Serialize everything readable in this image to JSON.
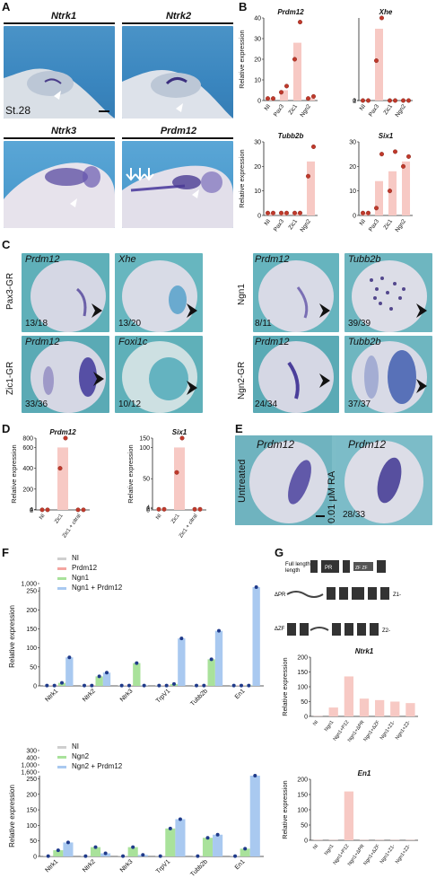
{
  "panels": {
    "A": "A",
    "B": "B",
    "C": "C",
    "D": "D",
    "E": "E",
    "F": "F",
    "G": "G"
  },
  "panelA": {
    "labels": [
      "Ntrk1",
      "Ntrk2",
      "Ntrk3",
      "Prdm12"
    ],
    "stage": "St.28"
  },
  "panelC": {
    "row_labels": [
      "Pax3-GR",
      "Zic1-GR",
      "Ngn1",
      "Ngn2-GR"
    ],
    "images": [
      {
        "gene": "Prdm12",
        "count": "13/18"
      },
      {
        "gene": "Xhe",
        "count": "13/20"
      },
      {
        "gene": "Prdm12",
        "count": "33/36"
      },
      {
        "gene": "Foxi1c",
        "count": "10/12"
      },
      {
        "gene": "Prdm12",
        "count": "8/11"
      },
      {
        "gene": "Tubb2b",
        "count": "39/39"
      },
      {
        "gene": "Prdm12",
        "count": "24/34"
      },
      {
        "gene": "Tubb2b",
        "count": "37/37"
      }
    ]
  },
  "panelE": {
    "left_label": "Untreated",
    "right_label": "0.01 μM RA",
    "gene": "Prdm12",
    "count": "28/33"
  },
  "panelG": {
    "constructs": [
      "Full length",
      "ΔPR",
      "ΔZF"
    ],
    "domains": [
      "PR",
      "ZF",
      "ZF",
      "ZF"
    ]
  },
  "chart_data": [
    {
      "id": "B-prdm12",
      "type": "bar",
      "title": "Prdm12",
      "ylabel": "Relative expression",
      "categories": [
        "NI",
        "Pax3",
        "Zic1",
        "Ngn2"
      ],
      "values": [
        1,
        5,
        28,
        1.5
      ],
      "points": [
        [
          1,
          1
        ],
        [
          4,
          7
        ],
        [
          20,
          38
        ],
        [
          1,
          2
        ]
      ],
      "yticks": [
        0,
        10,
        20,
        30,
        40
      ],
      "ylim": [
        0,
        40
      ],
      "color": "#f7c9c4"
    },
    {
      "id": "B-xhe",
      "type": "bar",
      "title": "Xhe",
      "ylabel": "",
      "categories": [
        "NI",
        "Pax3",
        "Zic1",
        "Ngn2"
      ],
      "values": [
        1,
        2700,
        0.5,
        0.6
      ],
      "points": [
        [
          1,
          1
        ],
        [
          1500,
          3900
        ],
        [
          0.3,
          0.7
        ],
        [
          0.5,
          0.7
        ]
      ],
      "yticks": [
        "0",
        "1",
        "2",
        "1,000",
        "2,000",
        "3,000",
        "4,000",
        "5,000"
      ],
      "color": "#f7c9c4"
    },
    {
      "id": "B-tubb2b",
      "type": "bar",
      "title": "Tubb2b",
      "ylabel": "Relative expression",
      "categories": [
        "NI",
        "Pax3",
        "Zic1",
        "Ngn2"
      ],
      "values": [
        1,
        1,
        1,
        22
      ],
      "points": [
        [
          1,
          1
        ],
        [
          1,
          1
        ],
        [
          1,
          1
        ],
        [
          16,
          28
        ]
      ],
      "yticks": [
        0,
        10,
        20,
        30
      ],
      "ylim": [
        0,
        30
      ],
      "color": "#f7c9c4"
    },
    {
      "id": "B-six1",
      "type": "bar",
      "title": "Six1",
      "ylabel": "",
      "categories": [
        "NI",
        "Pax3",
        "Zic1",
        "Ngn2"
      ],
      "values": [
        1,
        14,
        18,
        22
      ],
      "points": [
        [
          1,
          1
        ],
        [
          3,
          25
        ],
        [
          10,
          26
        ],
        [
          20,
          24
        ]
      ],
      "yticks": [
        0,
        10,
        20,
        30
      ],
      "ylim": [
        0,
        30
      ],
      "color": "#f7c9c4"
    },
    {
      "id": "D-prdm12",
      "type": "bar",
      "title": "Prdm12",
      "ylabel": "Relative expression",
      "categories": [
        "NI",
        "Zic1",
        "Zic1 + citral"
      ],
      "values": [
        1,
        600,
        1
      ],
      "points": [
        [
          1,
          1
        ],
        [
          400,
          900
        ],
        [
          1,
          1
        ]
      ],
      "yticks": [
        "0",
        "2",
        "4",
        "200",
        "400",
        "600",
        "800",
        "1,000"
      ],
      "color": "#f7c9c4"
    },
    {
      "id": "D-six1",
      "type": "bar",
      "title": "Six1",
      "ylabel": "Relative expression",
      "categories": [
        "NI",
        "Zic1",
        "Zic1 + citral"
      ],
      "values": [
        1,
        100,
        1
      ],
      "points": [
        [
          1,
          1
        ],
        [
          60,
          150
        ],
        [
          1,
          1
        ]
      ],
      "yticks": [
        "0",
        "2",
        "4",
        "50",
        "100",
        "150"
      ],
      "color": "#f7c9c4"
    },
    {
      "id": "F-top",
      "type": "bar",
      "ylabel": "Relative expression",
      "categories": [
        "Ntrk1",
        "Ntrk2",
        "Ntrk3",
        "TrpV1",
        "Tubb2b",
        "En1"
      ],
      "series": [
        {
          "name": "NI",
          "color": "#cfcfcf",
          "values": [
            1,
            1,
            1,
            1,
            1,
            1
          ]
        },
        {
          "name": "Prdm12",
          "color": "#f4a5a0",
          "values": [
            1,
            1,
            1,
            1,
            1,
            1
          ]
        },
        {
          "name": "Ngn1",
          "color": "#a9e29b",
          "values": [
            8,
            25,
            60,
            5,
            70,
            1
          ]
        },
        {
          "name": "Ngn1 + Prdm12",
          "color": "#a9c9f0",
          "values": [
            75,
            35,
            1,
            125,
            145,
            600
          ]
        }
      ],
      "yticks": [
        "0",
        "50",
        "100",
        "150",
        "200",
        "250",
        "1,000"
      ]
    },
    {
      "id": "F-bottom",
      "type": "bar",
      "ylabel": "Relative expression",
      "categories": [
        "Ntrk1",
        "Ntrk2",
        "Ntrk3",
        "TrpV1",
        "Tubb2b",
        "En1"
      ],
      "series": [
        {
          "name": "NI",
          "color": "#cfcfcf",
          "values": [
            1,
            1,
            1,
            1,
            1,
            1
          ]
        },
        {
          "name": "Ngn2",
          "color": "#a9e29b",
          "values": [
            20,
            30,
            30,
            90,
            60,
            25
          ]
        },
        {
          "name": "Ngn2 + Prdm12",
          "color": "#a9c9f0",
          "values": [
            45,
            10,
            5,
            120,
            70,
            1200
          ]
        }
      ],
      "yticks": [
        "0",
        "50",
        "100",
        "150",
        "200",
        "250",
        "300",
        "400",
        "1,000",
        "1,600"
      ]
    },
    {
      "id": "G-ntrk1",
      "type": "bar",
      "title": "Ntrk1",
      "ylabel": "Relative expression",
      "categories": [
        "NI",
        "Ngn1",
        "Ngn1+P12",
        "Ngn1+ΔPR",
        "Ngn1+ΔZF",
        "Ngn1+Z1-",
        "Ngn1+Z2-"
      ],
      "values": [
        1,
        30,
        135,
        60,
        55,
        50,
        45
      ],
      "yticks": [
        0,
        50,
        100,
        150,
        200
      ],
      "ylim": [
        0,
        200
      ],
      "color": "#f7c9c4"
    },
    {
      "id": "G-en1",
      "type": "bar",
      "title": "En1",
      "ylabel": "Relative expression",
      "categories": [
        "NI",
        "Ngn1",
        "Ngn1+P12",
        "Ngn1+ΔPR",
        "Ngn1+ΔZF",
        "Ngn1+Z1-",
        "Ngn1+Z2-"
      ],
      "values": [
        1,
        1,
        160,
        1,
        1,
        1,
        1
      ],
      "yticks": [
        0,
        50,
        100,
        150,
        200
      ],
      "ylim": [
        0,
        200
      ],
      "color": "#f7c9c4"
    }
  ]
}
